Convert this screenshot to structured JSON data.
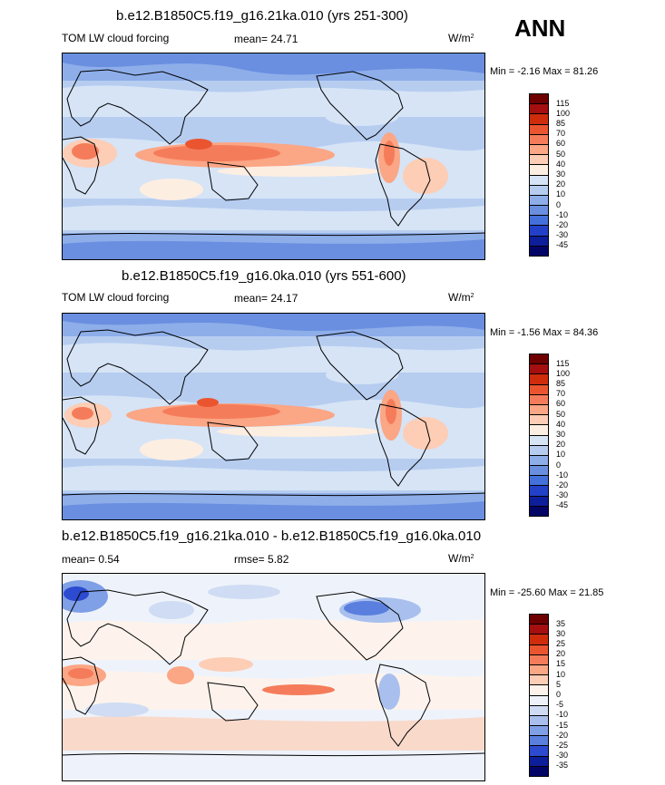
{
  "season": "ANN",
  "chart_data": [
    {
      "type": "heatmap",
      "title": "b.e12.B1850C5.f19_g16.21ka.010 (yrs 251-300)",
      "field": "TOM LW cloud forcing",
      "mean_label": "mean=",
      "mean_value": "24.71",
      "units": "W/m",
      "units_sup": "2",
      "min_label": "Min =",
      "min_value": "-2.16",
      "max_label": "Max =",
      "max_value": "81.26",
      "levels": [
        "115",
        "100",
        "85",
        "70",
        "60",
        "50",
        "40",
        "30",
        "20",
        "10",
        "0",
        "-10",
        "-20",
        "-30",
        "-45"
      ],
      "colors": [
        "#6e0000",
        "#a50f0f",
        "#cf2c0c",
        "#ea5530",
        "#f57c5a",
        "#fba685",
        "#fdcdb5",
        "#fdeee2",
        "#d6e4f6",
        "#b6cdf0",
        "#8eaeea",
        "#6a8fe0",
        "#4470dc",
        "#2241c8",
        "#0d1e9a",
        "#020566"
      ]
    },
    {
      "type": "heatmap",
      "title": "b.e12.B1850C5.f19_g16.0ka.010 (yrs 551-600)",
      "field": "TOM LW cloud forcing",
      "mean_label": "mean=",
      "mean_value": "24.17",
      "units": "W/m",
      "units_sup": "2",
      "min_label": "Min =",
      "min_value": "-1.56",
      "max_label": "Max =",
      "max_value": "84.36",
      "levels": [
        "115",
        "100",
        "85",
        "70",
        "60",
        "50",
        "40",
        "30",
        "20",
        "10",
        "0",
        "-10",
        "-20",
        "-30",
        "-45"
      ],
      "colors": [
        "#6e0000",
        "#a50f0f",
        "#cf2c0c",
        "#ea5530",
        "#f57c5a",
        "#fba685",
        "#fdcdb5",
        "#fdeee2",
        "#d6e4f6",
        "#b6cdf0",
        "#8eaeea",
        "#6a8fe0",
        "#4470dc",
        "#2241c8",
        "#0d1e9a",
        "#020566"
      ]
    },
    {
      "type": "heatmap",
      "title": "b.e12.B1850C5.f19_g16.21ka.010 - b.e12.B1850C5.f19_g16.0ka.010",
      "mean_label": "mean=",
      "mean_value": "0.54",
      "rmse_label": "rmse=",
      "rmse_value": "5.82",
      "units": "W/m",
      "units_sup": "2",
      "min_label": "Min =",
      "min_value": "-25.60",
      "max_label": "Max =",
      "max_value": "21.85",
      "levels": [
        "35",
        "30",
        "25",
        "20",
        "15",
        "10",
        "5",
        "0",
        "-5",
        "-10",
        "-15",
        "-20",
        "-25",
        "-30",
        "-35"
      ],
      "colors": [
        "#6e0000",
        "#a50f0f",
        "#cf2c0c",
        "#ea5530",
        "#f57c5a",
        "#fba685",
        "#fdcdb5",
        "#fdf3ec",
        "#eef3fb",
        "#cfdcf3",
        "#a9c0ee",
        "#7f9fe6",
        "#5a7fdf",
        "#2c4bd0",
        "#0d1e9a",
        "#020566"
      ]
    }
  ]
}
